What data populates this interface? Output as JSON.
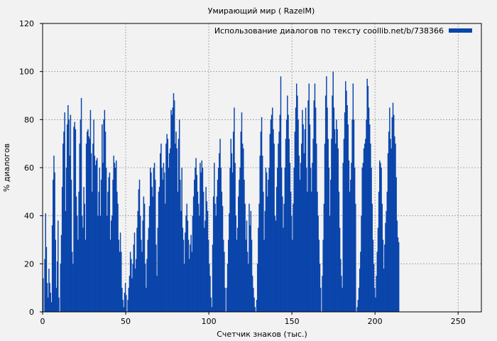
{
  "chart_data": {
    "type": "bar",
    "title": "Умирающий мир ( RazelM)",
    "xlabel": "Счетчик знаков (тыс.)",
    "ylabel": "% диалогов",
    "xlim": [
      0,
      264
    ],
    "ylim": [
      0,
      120
    ],
    "xticks": [
      0,
      50,
      100,
      150,
      200,
      250
    ],
    "yticks": [
      0,
      20,
      40,
      60,
      80,
      100,
      120
    ],
    "grid": true,
    "legend_position": "top-right",
    "series": [
      {
        "name": "Использование диалогов по тексту coollib.net/b/738366",
        "color": "#0a45ab",
        "x_step": 0.5,
        "values": [
          14,
          0,
          22,
          41,
          27,
          12,
          6,
          18,
          12,
          8,
          4,
          36,
          55,
          65,
          58,
          30,
          10,
          21,
          38,
          6,
          0,
          20,
          32,
          52,
          70,
          75,
          83,
          42,
          60,
          78,
          86,
          80,
          65,
          82,
          55,
          25,
          20,
          77,
          79,
          76,
          48,
          40,
          30,
          50,
          70,
          80,
          89,
          40,
          35,
          52,
          45,
          30,
          70,
          75,
          76,
          73,
          72,
          84,
          66,
          50,
          70,
          80,
          65,
          61,
          63,
          64,
          40,
          50,
          60,
          40,
          55,
          78,
          62,
          80,
          84,
          75,
          60,
          40,
          50,
          56,
          58,
          30,
          38,
          40,
          55,
          65,
          62,
          60,
          63,
          50,
          45,
          30,
          25,
          33,
          25,
          10,
          5,
          2,
          8,
          12,
          7,
          0,
          5,
          10,
          15,
          25,
          22,
          14,
          20,
          28,
          33,
          18,
          22,
          35,
          42,
          51,
          55,
          40,
          30,
          25,
          38,
          48,
          45,
          20,
          10,
          22,
          30,
          35,
          44,
          60,
          58,
          52,
          48,
          60,
          62,
          55,
          28,
          15,
          35,
          50,
          52,
          66,
          70,
          60,
          55,
          62,
          58,
          45,
          70,
          74,
          72,
          60,
          66,
          68,
          84,
          82,
          85,
          91,
          88,
          70,
          75,
          68,
          50,
          72,
          80,
          55,
          42,
          60,
          35,
          30,
          20,
          33,
          40,
          45,
          38,
          30,
          22,
          28,
          32,
          25,
          40,
          48,
          55,
          60,
          64,
          57,
          50,
          45,
          40,
          62,
          58,
          63,
          60,
          50,
          35,
          38,
          52,
          46,
          42,
          30,
          20,
          15,
          6,
          2,
          28,
          48,
          62,
          45,
          40,
          48,
          55,
          60,
          66,
          72,
          60,
          50,
          44,
          30,
          25,
          10,
          0,
          10,
          20,
          30,
          41,
          60,
          72,
          66,
          58,
          75,
          85,
          62,
          40,
          30,
          35,
          48,
          55,
          60,
          75,
          83,
          70,
          68,
          55,
          45,
          30,
          38,
          25,
          20,
          45,
          36,
          42,
          30,
          15,
          10,
          6,
          2,
          0,
          5,
          20,
          35,
          45,
          65,
          75,
          81,
          65,
          50,
          30,
          42,
          60,
          58,
          48,
          55,
          60,
          74,
          80,
          82,
          85,
          76,
          70,
          40,
          38,
          52,
          60,
          70,
          75,
          82,
          98,
          60,
          48,
          35,
          45,
          60,
          72,
          80,
          90,
          82,
          72,
          62,
          50,
          40,
          30,
          45,
          60,
          75,
          85,
          95,
          90,
          80,
          65,
          55,
          62,
          70,
          84,
          78,
          66,
          76,
          85,
          60,
          50,
          88,
          95,
          78,
          60,
          50,
          62,
          72,
          88,
          95,
          85,
          70,
          50,
          40,
          30,
          20,
          10,
          0,
          15,
          30,
          45,
          70,
          90,
          98,
          85,
          72,
          60,
          40,
          55,
          72,
          90,
          100,
          85,
          76,
          70,
          80,
          76,
          68,
          50,
          35,
          22,
          15,
          10,
          62,
          72,
          83,
          96,
          92,
          86,
          78,
          63,
          50,
          55,
          62,
          80,
          95,
          80,
          60,
          45,
          0,
          2,
          5,
          10,
          18,
          25,
          40,
          60,
          62,
          68,
          70,
          72,
          80,
          97,
          94,
          85,
          78,
          70,
          60,
          45,
          30,
          20,
          10,
          6,
          15,
          25,
          35,
          50,
          63,
          62,
          60,
          45,
          30,
          18,
          28,
          37,
          42,
          50,
          66,
          75,
          85,
          72,
          68,
          81,
          87,
          82,
          73,
          70,
          56,
          38,
          31,
          29
        ]
      }
    ]
  }
}
